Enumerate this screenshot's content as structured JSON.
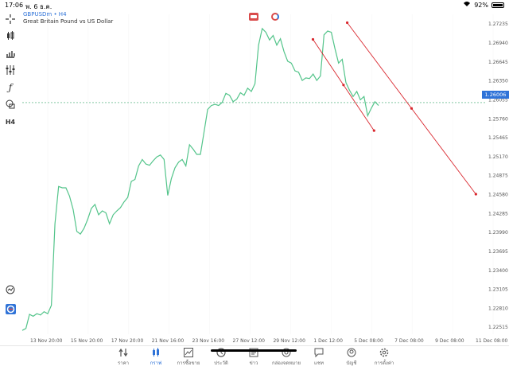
{
  "status_bar": {
    "time": "17:06",
    "date": "พ. 6 ธ.ค.",
    "battery": "92%"
  },
  "symbol": {
    "title": "GBPUSDm • H4",
    "description": "Great Britain Pound vs US Dollar"
  },
  "price_badge": "1.26006",
  "colors": {
    "line": "#53c48a",
    "trend": "#d9272e",
    "accent": "#2f73d8",
    "grid": "#eeeeee",
    "current": "#3aa86f"
  },
  "toolbar": [
    "crosshair-icon",
    "candles-icon",
    "bars-icon",
    "indicators-icon",
    "function-icon",
    "objects-icon",
    "h4-label",
    "zoom-icon",
    "one-click-icon"
  ],
  "toolbar_label": "H4",
  "chart_data": {
    "type": "line",
    "y_ticks": [
      "1.27235",
      "1.26940",
      "1.26645",
      "1.26350",
      "1.26055",
      "1.25760",
      "1.25465",
      "1.25170",
      "1.24875",
      "1.24580",
      "1.24285",
      "1.23990",
      "1.23695",
      "1.23400",
      "1.23105",
      "1.22810",
      "1.22515"
    ],
    "x_ticks": [
      "13 Nov 20:00",
      "15 Nov 20:00",
      "17 Nov 20:00",
      "21 Nov 16:00",
      "23 Nov 16:00",
      "27 Nov 12:00",
      "29 Nov 12:00",
      "1 Dec 12:00",
      "5 Dec 08:00",
      "7 Dec 08:00",
      "9 Dec 08:00",
      "11 Dec 08:00"
    ],
    "ylim": [
      1.224,
      1.2738
    ],
    "values": [
      1.2246,
      1.2249,
      1.2271,
      1.2268,
      1.2272,
      1.227,
      1.2275,
      1.2272,
      1.2285,
      1.2412,
      1.247,
      1.2468,
      1.2468,
      1.2455,
      1.2434,
      1.24,
      1.2396,
      1.2405,
      1.2419,
      1.2436,
      1.2442,
      1.2426,
      1.2432,
      1.2429,
      1.2412,
      1.2426,
      1.2432,
      1.2437,
      1.2446,
      1.2453,
      1.2478,
      1.2481,
      1.2502,
      1.2512,
      1.2505,
      1.2503,
      1.251,
      1.2516,
      1.2519,
      1.2512,
      1.2456,
      1.2482,
      1.2499,
      1.2508,
      1.2512,
      1.2502,
      1.2535,
      1.2528,
      1.252,
      1.252,
      1.2555,
      1.259,
      1.2596,
      1.2598,
      1.2596,
      1.2601,
      1.2615,
      1.2612,
      1.2602,
      1.2606,
      1.2616,
      1.2612,
      1.2623,
      1.2618,
      1.263,
      1.269,
      1.2716,
      1.271,
      1.2698,
      1.2705,
      1.269,
      1.27,
      1.268,
      1.2665,
      1.2662,
      1.265,
      1.2648,
      1.2635,
      1.2639,
      1.2638,
      1.2645,
      1.2635,
      1.2642,
      1.2706,
      1.2712,
      1.271,
      1.2685,
      1.2662,
      1.2668,
      1.2632,
      1.262,
      1.261,
      1.2618,
      1.2605,
      1.261,
      1.258,
      1.2592,
      1.2602,
      1.2596
    ],
    "current_price": 1.26006,
    "trendlines": [
      {
        "x1": 0.628,
        "y1": 1.2699,
        "x2": 0.76,
        "y2": 1.2557
      },
      {
        "x1": 0.702,
        "y1": 1.2725,
        "x2": 0.98,
        "y2": 1.2458
      }
    ]
  },
  "tabs": [
    {
      "label": "ราคา",
      "icon": "quotes-icon",
      "active": false
    },
    {
      "label": "กราฟ",
      "icon": "chart-icon",
      "active": true
    },
    {
      "label": "การซื้อขาย",
      "icon": "trade-icon",
      "active": false
    },
    {
      "label": "ประวัติ",
      "icon": "history-icon",
      "active": false
    },
    {
      "label": "ข่าว",
      "icon": "news-icon",
      "active": false
    },
    {
      "label": "กล่องจดหมาย",
      "icon": "mailbox-icon",
      "active": false
    },
    {
      "label": "แชท",
      "icon": "chat-icon",
      "active": false
    },
    {
      "label": "บัญชี",
      "icon": "account-icon",
      "active": false
    },
    {
      "label": "การตั้งค่า",
      "icon": "settings-icon",
      "active": false
    }
  ]
}
